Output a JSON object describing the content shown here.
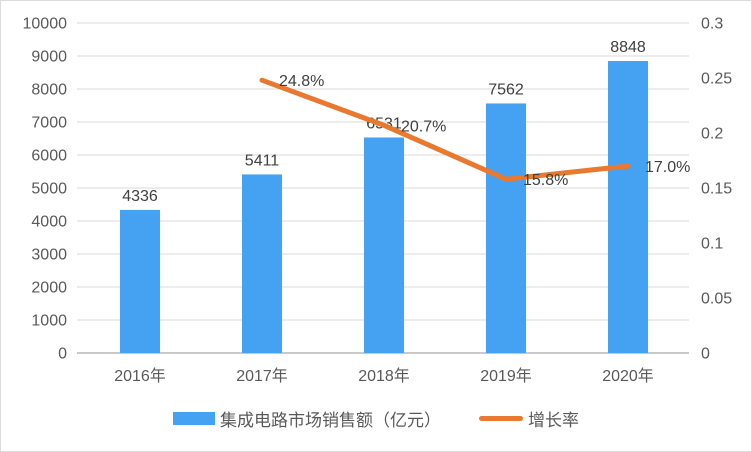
{
  "chart_data": {
    "type": "bar+line combo",
    "categories": [
      "2016年",
      "2017年",
      "2018年",
      "2019年",
      "2020年"
    ],
    "series": [
      {
        "name": "集成电路市场销售额（亿元）",
        "type": "bar",
        "axis": "left",
        "color": "#45A1F2",
        "values": [
          4336,
          5411,
          6531,
          7562,
          8848
        ],
        "data_labels": [
          "4336",
          "5411",
          "6531",
          "7562",
          "8848"
        ]
      },
      {
        "name": "增长率",
        "type": "line",
        "axis": "right",
        "color": "#E8792F",
        "values": [
          null,
          0.248,
          0.207,
          0.158,
          0.17
        ],
        "data_labels": [
          null,
          "24.8%",
          "20.7%",
          "15.8%",
          "17.0%"
        ]
      }
    ],
    "left_axis": {
      "min": 0,
      "max": 10000,
      "step": 1000,
      "tick_labels": [
        "0",
        "1000",
        "2000",
        "3000",
        "4000",
        "5000",
        "6000",
        "7000",
        "8000",
        "9000",
        "10000"
      ]
    },
    "right_axis": {
      "min": 0,
      "max": 0.3,
      "step": 0.05,
      "tick_labels": [
        "0",
        "0.05",
        "0.1",
        "0.15",
        "0.2",
        "0.25",
        "0.3"
      ]
    },
    "title": "",
    "grid": true,
    "legend_position": "bottom",
    "colors": {
      "gridline": "#D9D9D9",
      "baseline": "#C9C9C9",
      "tick_text": "#595959",
      "data_label_text": "#404040"
    }
  }
}
